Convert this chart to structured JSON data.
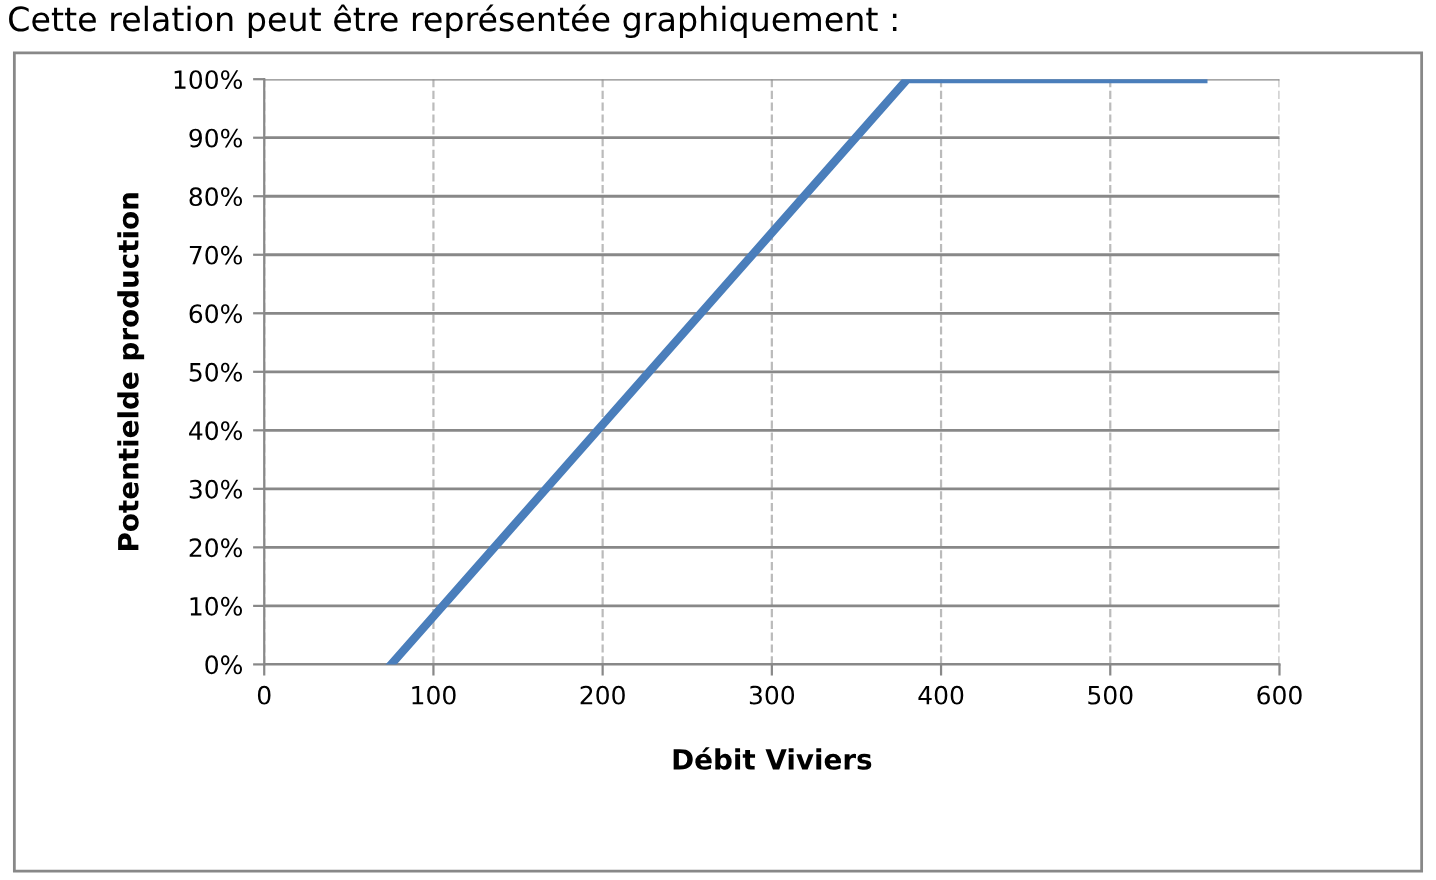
{
  "chart_data": {
    "type": "line",
    "xlabel": "Débit Viviers",
    "ylabel": "Potentielde production",
    "annotations": [
      "Cette relation peut être représentée graphiquement :"
    ],
    "x": [
      75,
      380,
      555
    ],
    "series": [
      {
        "color": "#4a7ebb",
        "values": [
          0,
          100,
          100
        ]
      }
    ],
    "xlim": [
      0,
      600
    ],
    "xticks": [
      0,
      100,
      200,
      300,
      400,
      500,
      600
    ],
    "ylim": [
      0,
      100
    ],
    "yticks": [
      {
        "value": 0,
        "label": "0%"
      },
      {
        "value": 10,
        "label": "10%"
      },
      {
        "value": 20,
        "label": "20%"
      },
      {
        "value": 30,
        "label": "30%"
      },
      {
        "value": 40,
        "label": "40%"
      },
      {
        "value": 50,
        "label": "50%"
      },
      {
        "value": 60,
        "label": "60%"
      },
      {
        "value": 70,
        "label": "70%"
      },
      {
        "value": 80,
        "label": "80%"
      },
      {
        "value": 90,
        "label": "90%"
      },
      {
        "value": 100,
        "label": "100%"
      }
    ],
    "grid": true,
    "marker": "none",
    "line_style": "solid"
  }
}
